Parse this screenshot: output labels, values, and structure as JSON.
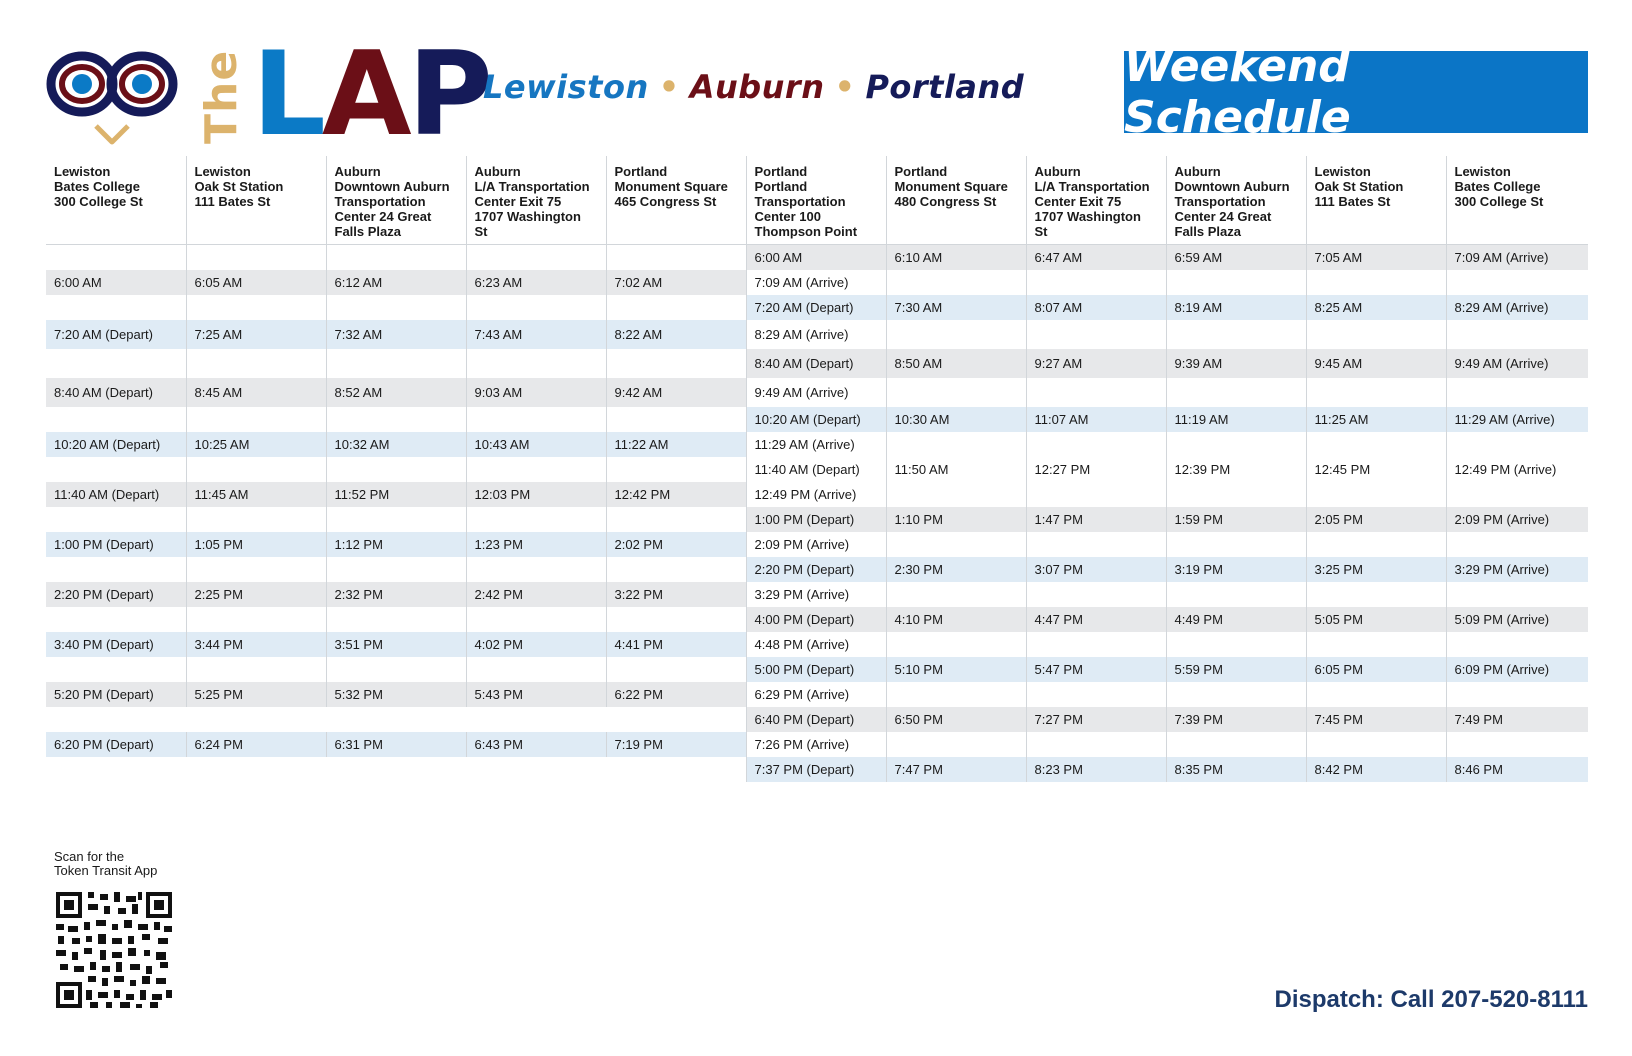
{
  "header": {
    "logo_the": "The",
    "logo_lap": {
      "l": "L",
      "a": "A",
      "p": "P"
    },
    "tagline": {
      "city1": "Lewiston",
      "city2": "Auburn",
      "city3": "Portland",
      "dot": "•"
    },
    "banner": "Weekend Schedule"
  },
  "colors": {
    "banner_blue": "#0b75c6",
    "brand_maroon": "#6b0f17",
    "brand_navy": "#151b59",
    "brand_gold": "#dcb36c",
    "row_blue": "#dfebf5",
    "row_gray": "#e7e8ea"
  },
  "table": {
    "columns": [
      {
        "line1": "Lewiston",
        "line2": "Bates College",
        "line3": "300 College St"
      },
      {
        "line1": "Lewiston",
        "line2": "Oak St Station",
        "line3": "111 Bates St"
      },
      {
        "line1": "Auburn",
        "line2": "Downtown Auburn Transportation Center 24 Great Falls Plaza",
        "line3": ""
      },
      {
        "line1": "Auburn",
        "line2": "L/A Transportation Center Exit 75",
        "line3": "1707 Washington St"
      },
      {
        "line1": "Portland",
        "line2": "Monument Square",
        "line3": "465 Congress St"
      },
      {
        "line1": "Portland",
        "line2": "Portland Transportation Center 100 Thompson Point",
        "line3": ""
      },
      {
        "line1": "Portland",
        "line2": "Monument Square",
        "line3": "480 Congress St"
      },
      {
        "line1": "Auburn",
        "line2": "L/A Transportation Center Exit 75",
        "line3": "1707 Washington St"
      },
      {
        "line1": "Auburn",
        "line2": "Downtown Auburn Transportation Center 24 Great Falls Plaza",
        "line3": ""
      },
      {
        "line1": "Lewiston",
        "line2": "Oak St Station",
        "line3": "111 Bates St"
      },
      {
        "line1": "Lewiston",
        "line2": "Bates College",
        "line3": "300 College St"
      }
    ],
    "rows": [
      [
        "",
        "",
        "",
        "",
        "",
        "6:00 AM",
        "6:10 AM",
        "6:47 AM",
        "6:59 AM",
        "7:05 AM",
        "7:09 AM (Arrive)"
      ],
      [
        "6:00 AM",
        "6:05 AM",
        "6:12 AM",
        "6:23 AM",
        "7:02 AM",
        "7:09 AM (Arrive)",
        "",
        "",
        "",
        "",
        ""
      ],
      [
        "",
        "",
        "",
        "",
        "",
        "7:20 AM (Depart)",
        "7:30 AM",
        "8:07 AM",
        "8:19 AM",
        "8:25 AM",
        "8:29 AM (Arrive)"
      ],
      [
        "7:20 AM (Depart)",
        "7:25 AM",
        "7:32 AM",
        "7:43 AM",
        "8:22 AM",
        "8:29 AM (Arrive)",
        "",
        "",
        "",
        "",
        ""
      ],
      [
        "",
        "",
        "",
        "",
        "",
        "8:40 AM (Depart)",
        "8:50 AM",
        "9:27 AM",
        "9:39 AM",
        "9:45 AM",
        "9:49 AM (Arrive)"
      ],
      [
        "8:40 AM (Depart)",
        "8:45 AM",
        "8:52 AM",
        "9:03 AM",
        "9:42 AM",
        "9:49 AM (Arrive)",
        "",
        "",
        "",
        "",
        ""
      ],
      [
        "",
        "",
        "",
        "",
        "",
        "10:20 AM (Depart)",
        "10:30 AM",
        "11:07 AM",
        "11:19 AM",
        "11:25 AM",
        "11:29 AM (Arrive)"
      ],
      [
        "10:20 AM (Depart)",
        "10:25 AM",
        "10:32 AM",
        "10:43 AM",
        "11:22 AM",
        "11:29 AM (Arrive)",
        "",
        "",
        "",
        "",
        ""
      ],
      [
        "",
        "",
        "",
        "",
        "",
        "11:40 AM (Depart)",
        "11:50 AM",
        "12:27 PM",
        "12:39 PM",
        "12:45 PM",
        "12:49 PM (Arrive)"
      ],
      [
        "11:40 AM (Depart)",
        "11:45 AM",
        "11:52 PM",
        "12:03 PM",
        "12:42 PM",
        "12:49 PM (Arrive)",
        "",
        "",
        "",
        "",
        ""
      ],
      [
        "",
        "",
        "",
        "",
        "",
        "1:00 PM (Depart)",
        "1:10 PM",
        "1:47 PM",
        "1:59 PM",
        "2:05 PM",
        "2:09 PM (Arrive)"
      ],
      [
        "1:00 PM (Depart)",
        "1:05 PM",
        "1:12 PM",
        "1:23 PM",
        "2:02 PM",
        "2:09 PM (Arrive)",
        "",
        "",
        "",
        "",
        ""
      ],
      [
        "",
        "",
        "",
        "",
        "",
        "2:20 PM (Depart)",
        "2:30 PM",
        "3:07 PM",
        "3:19 PM",
        "3:25 PM",
        "3:29 PM (Arrive)"
      ],
      [
        "2:20 PM (Depart)",
        "2:25 PM",
        "2:32 PM",
        "2:42 PM",
        "3:22 PM",
        "3:29 PM (Arrive)",
        "",
        "",
        "",
        "",
        ""
      ],
      [
        "",
        "",
        "",
        "",
        "",
        "4:00 PM (Depart)",
        "4:10 PM",
        "4:47 PM",
        "4:49 PM",
        "5:05 PM",
        "5:09 PM (Arrive)"
      ],
      [
        "3:40 PM (Depart)",
        "3:44 PM",
        "3:51 PM",
        "4:02 PM",
        "4:41 PM",
        "4:48 PM (Arrive)",
        "",
        "",
        "",
        "",
        ""
      ],
      [
        "",
        "",
        "",
        "",
        "",
        "5:00 PM (Depart)",
        "5:10 PM",
        "5:47 PM",
        "5:59 PM",
        "6:05 PM",
        "6:09 PM (Arrive)"
      ],
      [
        "5:20 PM (Depart)",
        "5:25 PM",
        "5:32 PM",
        "5:43 PM",
        "6:22 PM",
        "6:29 PM (Arrive)",
        "",
        "",
        "",
        "",
        ""
      ],
      [
        "",
        "",
        "",
        "",
        "",
        "6:40 PM (Depart)",
        "6:50 PM",
        "7:27 PM",
        "7:39 PM",
        "7:45 PM",
        "7:49 PM"
      ],
      [
        "6:20 PM (Depart)",
        "6:24 PM",
        "6:31 PM",
        "6:43 PM",
        "7:19 PM",
        "7:26 PM (Arrive)",
        "",
        "",
        "",
        "",
        ""
      ],
      [
        "",
        "",
        "",
        "",
        "",
        "7:37 PM (Depart)",
        "7:47 PM",
        "8:23 PM",
        "8:35 PM",
        "8:42 PM",
        "8:46 PM"
      ]
    ]
  },
  "footer": {
    "scan_line1": "Scan for the",
    "scan_line2": "Token Transit App",
    "dispatch": "Dispatch: Call 207-520-8111"
  }
}
